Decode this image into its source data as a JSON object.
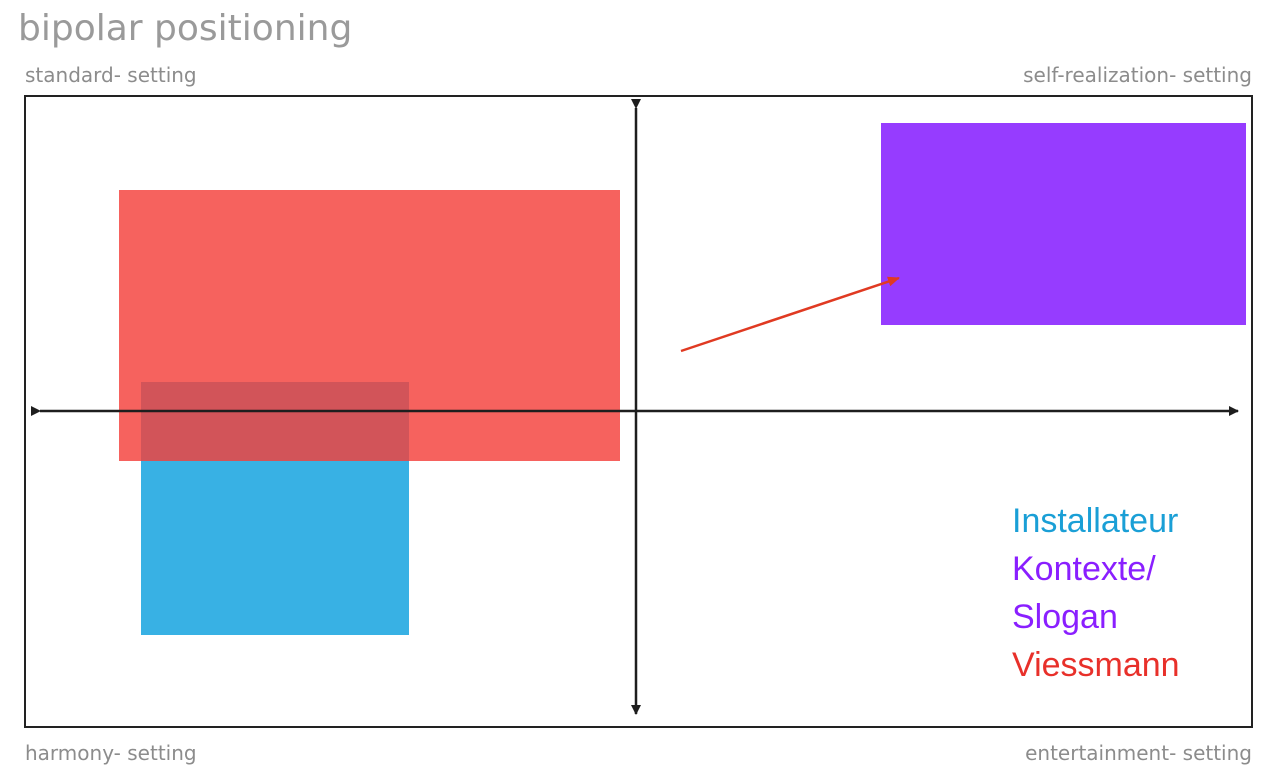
{
  "title": "bipolar positioning",
  "corners": {
    "top_left": "standard- setting",
    "top_right": "self-realization- setting",
    "bottom_left": "harmony- setting",
    "bottom_right": "entertainment- setting"
  },
  "legend": [
    {
      "label": "Installateur",
      "color": "#1a9fd6"
    },
    {
      "label": "Kontexte/",
      "color": "#8a1fff"
    },
    {
      "label": "Slogan",
      "color": "#8a1fff"
    },
    {
      "label": "Viessmann",
      "color": "#e8302a"
    }
  ],
  "colors": {
    "red_area": "#f4403a",
    "blue_area": "#38b1e4",
    "purple_area": "#963cff",
    "arrow_red": "#e03a22",
    "axis": "#1e1e1e"
  }
}
